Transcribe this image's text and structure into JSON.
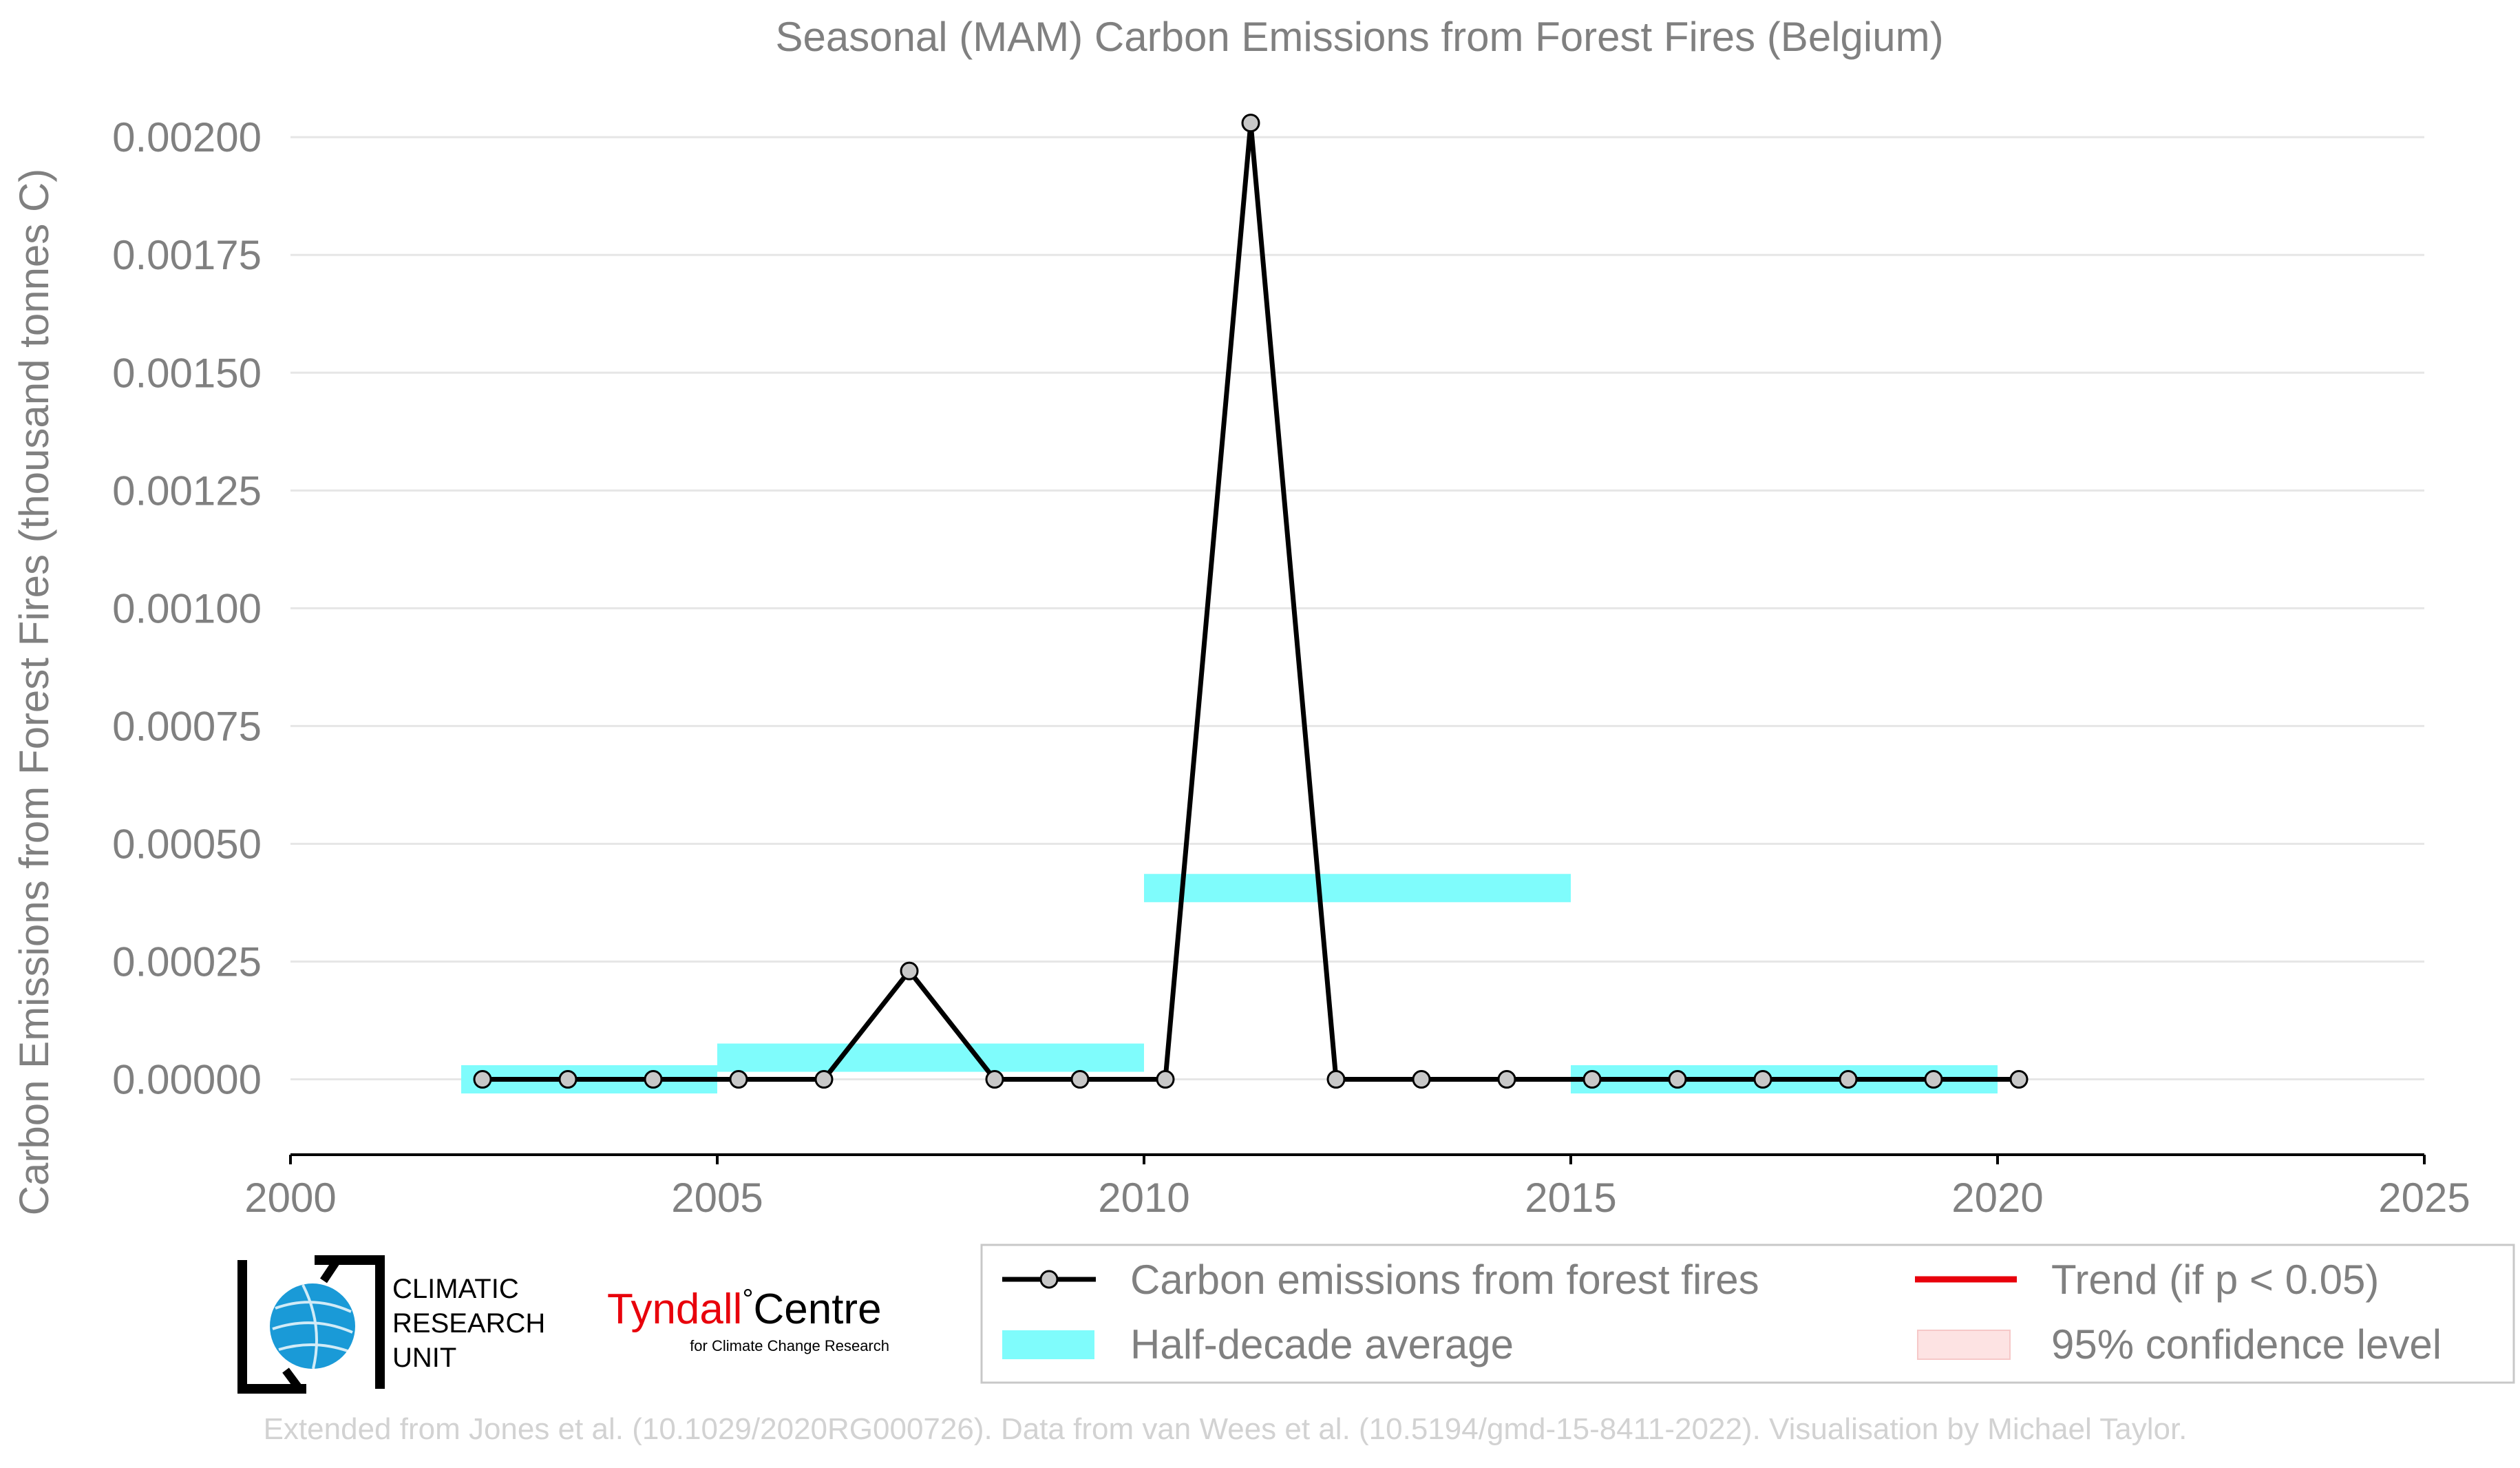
{
  "chart_data": {
    "type": "line",
    "title": "Seasonal (MAM) Carbon Emissions from Forest Fires (Belgium)",
    "ylabel": "Carbon Emissions from Forest Fires (thousand tonnes C)",
    "xlabel": "",
    "xlim": [
      2000,
      2025
    ],
    "ylim": [
      -0.00016,
      0.00205
    ],
    "x_ticks": [
      2000,
      2005,
      2010,
      2015,
      2020,
      2025
    ],
    "y_ticks": [
      0.0,
      0.00025,
      0.0005,
      0.00075,
      0.001,
      0.00125,
      0.0015,
      0.00175,
      0.002
    ],
    "y_tick_labels": [
      "0.00000",
      "0.00025",
      "0.00050",
      "0.00075",
      "0.00100",
      "0.00125",
      "0.00150",
      "0.00175",
      "0.00200"
    ],
    "grid": "horizontal",
    "legend_position": "bottom-right",
    "series": [
      {
        "name": "Carbon emissions from forest fires",
        "color": "#000000",
        "marker_fill": "#c8c8c8",
        "x": [
          2002.25,
          2003.25,
          2004.25,
          2005.25,
          2006.25,
          2007.25,
          2008.25,
          2009.25,
          2010.25,
          2011.25,
          2012.25,
          2013.25,
          2014.25,
          2015.25,
          2016.25,
          2017.25,
          2018.25,
          2019.25,
          2020.25
        ],
        "values": [
          0,
          0,
          0,
          0,
          0,
          0.00023,
          0,
          0,
          0,
          0.00203,
          0,
          0,
          0,
          0,
          0,
          0,
          0,
          0,
          0
        ]
      }
    ],
    "half_decade_average": {
      "name": "Half-decade average",
      "color": "#7ffcfc",
      "segments": [
        {
          "x_start": 2002,
          "x_end": 2005,
          "value": 0.0
        },
        {
          "x_start": 2005,
          "x_end": 2010,
          "value": 4.6e-05
        },
        {
          "x_start": 2010,
          "x_end": 2015,
          "value": 0.000406
        },
        {
          "x_start": 2015,
          "x_end": 2020,
          "value": 0.0
        }
      ]
    },
    "legend": [
      {
        "label": "Carbon emissions from forest fires",
        "kind": "line-marker",
        "color": "#000000"
      },
      {
        "label": "Trend (if p < 0.05)",
        "kind": "line",
        "color": "#e8000b"
      },
      {
        "label": "Half-decade average",
        "kind": "band",
        "color": "#7ffcfc"
      },
      {
        "label": "95% confidence level",
        "kind": "band",
        "color": "#fde3e3"
      }
    ]
  },
  "logos": {
    "cru_text": [
      "CLIMATIC",
      "RESEARCH",
      "UNIT"
    ],
    "tyndall_name_red": "Tyndall",
    "tyndall_name_black": "Centre",
    "tyndall_degree": "°",
    "tyndall_subtitle": "for Climate Change Research"
  },
  "footer": {
    "credit": "Extended from Jones et al. (10.1029/2020RG000726). Data from van Wees et al. (10.5194/gmd-15-8411-2022). Visualisation by Michael Taylor."
  },
  "colors": {
    "text": "#808080",
    "grid": "#e6e6e6",
    "axis": "#000000",
    "footer": "#d2d2d2",
    "tyndall_red": "#e8000b"
  }
}
